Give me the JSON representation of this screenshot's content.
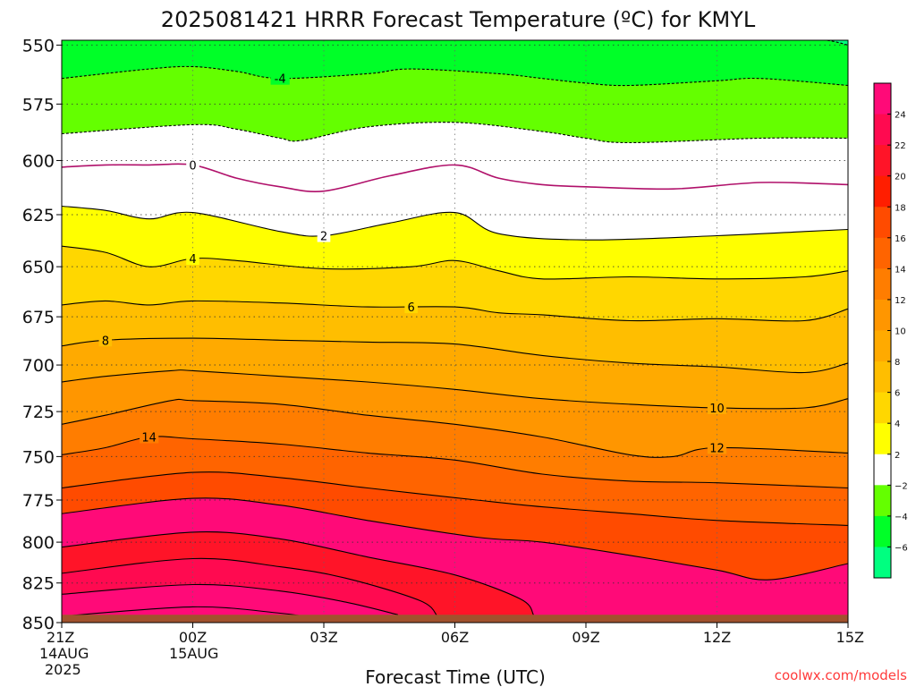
{
  "chart_data": {
    "type": "heatmap",
    "title": "2025081421 HRRR Forecast Temperature (ºC) for KMYL",
    "xlabel": "Forecast Time (UTC)",
    "ylabel": "",
    "watermark": "coolwx.com/models",
    "x_ticks": [
      {
        "hour": 0,
        "lines": [
          "21Z",
          "14AUG",
          "2025"
        ]
      },
      {
        "hour": 3,
        "lines": [
          "00Z",
          "15AUG"
        ]
      },
      {
        "hour": 6,
        "lines": [
          "03Z"
        ]
      },
      {
        "hour": 9,
        "lines": [
          "06Z"
        ]
      },
      {
        "hour": 12,
        "lines": [
          "09Z"
        ]
      },
      {
        "hour": 15,
        "lines": [
          "12Z"
        ]
      },
      {
        "hour": 18,
        "lines": [
          "15Z"
        ]
      }
    ],
    "xlim": [
      0,
      18
    ],
    "y_ticks": [
      550,
      575,
      600,
      625,
      650,
      675,
      700,
      725,
      750,
      775,
      800,
      825,
      850
    ],
    "ylim": [
      548,
      850
    ],
    "y_reversed": true,
    "y_scale": "log",
    "ground_level_hpa": 845,
    "colors": {
      "ground": "#a0522d",
      "freezing_line": "#b0106a",
      "contour": "#000000",
      "below_freezing_contour": "#000000"
    },
    "colorbar": {
      "ticks": [
        24,
        22,
        20,
        18,
        16,
        14,
        12,
        10,
        8,
        6,
        4,
        2,
        -2,
        -4,
        -6
      ],
      "bands": [
        {
          "min": 24,
          "max": 26,
          "color": "#ff0a78"
        },
        {
          "min": 22,
          "max": 24,
          "color": "#ff0a50"
        },
        {
          "min": 20,
          "max": 22,
          "color": "#ff1428"
        },
        {
          "min": 18,
          "max": 20,
          "color": "#ff1e00"
        },
        {
          "min": 16,
          "max": 18,
          "color": "#ff4b00"
        },
        {
          "min": 14,
          "max": 16,
          "color": "#ff6400"
        },
        {
          "min": 12,
          "max": 14,
          "color": "#ff7d00"
        },
        {
          "min": 10,
          "max": 12,
          "color": "#ff9600"
        },
        {
          "min": 8,
          "max": 10,
          "color": "#ffaa00"
        },
        {
          "min": 6,
          "max": 8,
          "color": "#ffbe00"
        },
        {
          "min": 4,
          "max": 6,
          "color": "#ffd700"
        },
        {
          "min": 2,
          "max": 4,
          "color": "#ffff00"
        },
        {
          "min": -2,
          "max": 2,
          "color": "#ffffff"
        },
        {
          "min": -4,
          "max": -2,
          "color": "#64ff00"
        },
        {
          "min": -6,
          "max": -4,
          "color": "#00ff28"
        },
        {
          "min": -8,
          "max": -6,
          "color": "#00ff80"
        }
      ]
    },
    "contours": [
      {
        "level": 26,
        "labeled": false,
        "points": [
          [
            0,
            846
          ],
          [
            3,
            840
          ],
          [
            5,
            844
          ],
          [
            6,
            848
          ]
        ]
      },
      {
        "level": 24,
        "labeled": false,
        "points": [
          [
            0,
            832
          ],
          [
            3,
            826
          ],
          [
            5,
            830
          ],
          [
            6.5,
            837
          ],
          [
            7.7,
            845
          ]
        ]
      },
      {
        "level": 22,
        "labeled": false,
        "points": [
          [
            0,
            819
          ],
          [
            3,
            810
          ],
          [
            5,
            815
          ],
          [
            6.5,
            822
          ],
          [
            8.2,
            836
          ],
          [
            8.6,
            846
          ]
        ]
      },
      {
        "level": 20,
        "labeled": false,
        "points": [
          [
            0,
            803
          ],
          [
            3,
            794
          ],
          [
            5,
            798
          ],
          [
            7,
            809
          ],
          [
            9,
            820
          ],
          [
            10.5,
            835
          ],
          [
            10.8,
            845
          ]
        ]
      },
      {
        "level": 18,
        "labeled": false,
        "points": [
          [
            0,
            783
          ],
          [
            3,
            774
          ],
          [
            5,
            778
          ],
          [
            7,
            787
          ],
          [
            9.5,
            797
          ],
          [
            11,
            800
          ],
          [
            13,
            808
          ],
          [
            15,
            817
          ],
          [
            16.2,
            823
          ],
          [
            18,
            813
          ]
        ]
      },
      {
        "level": 16,
        "labeled": false,
        "points": [
          [
            0,
            768
          ],
          [
            3,
            759
          ],
          [
            5,
            762
          ],
          [
            7,
            768
          ],
          [
            9.5,
            775
          ],
          [
            11,
            779
          ],
          [
            13,
            783
          ],
          [
            15,
            787
          ],
          [
            18,
            790
          ]
        ]
      },
      {
        "level": 14,
        "labeled": true,
        "label_hour": 2,
        "points": [
          [
            0,
            749
          ],
          [
            1,
            745
          ],
          [
            2,
            739
          ],
          [
            3,
            740
          ],
          [
            5,
            743
          ],
          [
            7,
            748
          ],
          [
            9,
            752
          ],
          [
            11,
            760
          ],
          [
            13,
            764
          ],
          [
            15,
            765
          ],
          [
            18,
            768
          ]
        ]
      },
      {
        "level": 12,
        "labeled": true,
        "label_hour": 15,
        "points": [
          [
            0,
            732
          ],
          [
            1,
            727
          ],
          [
            2.5,
            719
          ],
          [
            3,
            719
          ],
          [
            5,
            721
          ],
          [
            7,
            727
          ],
          [
            9,
            732
          ],
          [
            11,
            739
          ],
          [
            13,
            749
          ],
          [
            14,
            750
          ],
          [
            15,
            745
          ],
          [
            18,
            748
          ]
        ]
      },
      {
        "level": 10,
        "labeled": true,
        "label_hour": 15,
        "points": [
          [
            0,
            709
          ],
          [
            1,
            706
          ],
          [
            2.5,
            703
          ],
          [
            3,
            703
          ],
          [
            5,
            706
          ],
          [
            7,
            709
          ],
          [
            9,
            713
          ],
          [
            11,
            718
          ],
          [
            13,
            721
          ],
          [
            15,
            723
          ],
          [
            17,
            723
          ],
          [
            18,
            718
          ]
        ]
      },
      {
        "level": 8,
        "labeled": true,
        "label_hour": 1,
        "points": [
          [
            0,
            690
          ],
          [
            1,
            687
          ],
          [
            3,
            686
          ],
          [
            5,
            687
          ],
          [
            7,
            688
          ],
          [
            9,
            689
          ],
          [
            11,
            695
          ],
          [
            13,
            699
          ],
          [
            15,
            701
          ],
          [
            17,
            704
          ],
          [
            18,
            699
          ]
        ]
      },
      {
        "level": 6,
        "labeled": true,
        "label_hour": 8,
        "points": [
          [
            0,
            669
          ],
          [
            1,
            667
          ],
          [
            2,
            669
          ],
          [
            3,
            667
          ],
          [
            5,
            668
          ],
          [
            7,
            670
          ],
          [
            9,
            670
          ],
          [
            10,
            673
          ],
          [
            11,
            674
          ],
          [
            13,
            677
          ],
          [
            15,
            676
          ],
          [
            17,
            677
          ],
          [
            18,
            671
          ]
        ]
      },
      {
        "level": 4,
        "labeled": true,
        "label_hour": 3,
        "points": [
          [
            0,
            640
          ],
          [
            1,
            643
          ],
          [
            2,
            650
          ],
          [
            3,
            646
          ],
          [
            4,
            647
          ],
          [
            6,
            651
          ],
          [
            8,
            650
          ],
          [
            9,
            647
          ],
          [
            10,
            652
          ],
          [
            11,
            656
          ],
          [
            13,
            655
          ],
          [
            15,
            656
          ],
          [
            17,
            655
          ],
          [
            18,
            652
          ]
        ]
      },
      {
        "level": 2,
        "labeled": true,
        "label_hour": 6,
        "points": [
          [
            0,
            621
          ],
          [
            1,
            623
          ],
          [
            2,
            627
          ],
          [
            3,
            624
          ],
          [
            5,
            633
          ],
          [
            6,
            635
          ],
          [
            7.5,
            629
          ],
          [
            9,
            624
          ],
          [
            10,
            634
          ],
          [
            12,
            637
          ],
          [
            15,
            635
          ],
          [
            17,
            633
          ],
          [
            18,
            632
          ]
        ]
      },
      {
        "level": 0,
        "labeled": true,
        "label_hour": 3,
        "points": [
          [
            0,
            603
          ],
          [
            1,
            602
          ],
          [
            2,
            602
          ],
          [
            3,
            602
          ],
          [
            4,
            608
          ],
          [
            5,
            612
          ],
          [
            6,
            614
          ],
          [
            7.5,
            607
          ],
          [
            9,
            602
          ],
          [
            10,
            608
          ],
          [
            11,
            611
          ],
          [
            12,
            612
          ],
          [
            14,
            613
          ],
          [
            16,
            610
          ],
          [
            18,
            611
          ]
        ]
      },
      {
        "level": -2,
        "labeled": false,
        "points": [
          [
            0,
            588
          ],
          [
            3,
            584
          ],
          [
            4,
            586
          ],
          [
            5,
            590
          ],
          [
            5.5,
            591
          ],
          [
            7,
            585
          ],
          [
            9,
            583
          ],
          [
            11,
            587
          ],
          [
            12,
            590
          ],
          [
            13,
            592
          ],
          [
            16,
            590
          ],
          [
            18,
            590
          ]
        ]
      },
      {
        "level": -4,
        "labeled": true,
        "label_hour": 5,
        "points": [
          [
            0,
            564
          ],
          [
            2,
            560
          ],
          [
            3,
            559
          ],
          [
            4,
            561
          ],
          [
            5,
            564
          ],
          [
            7,
            562
          ],
          [
            8,
            560
          ],
          [
            10,
            562
          ],
          [
            11,
            564
          ],
          [
            12,
            566
          ],
          [
            13,
            567
          ],
          [
            15,
            565
          ],
          [
            16,
            564
          ],
          [
            18,
            567
          ]
        ]
      },
      {
        "level": -6,
        "labeled": false,
        "points": [
          [
            16.5,
            547
          ],
          [
            17.5,
            548
          ],
          [
            18,
            550
          ]
        ]
      }
    ]
  }
}
